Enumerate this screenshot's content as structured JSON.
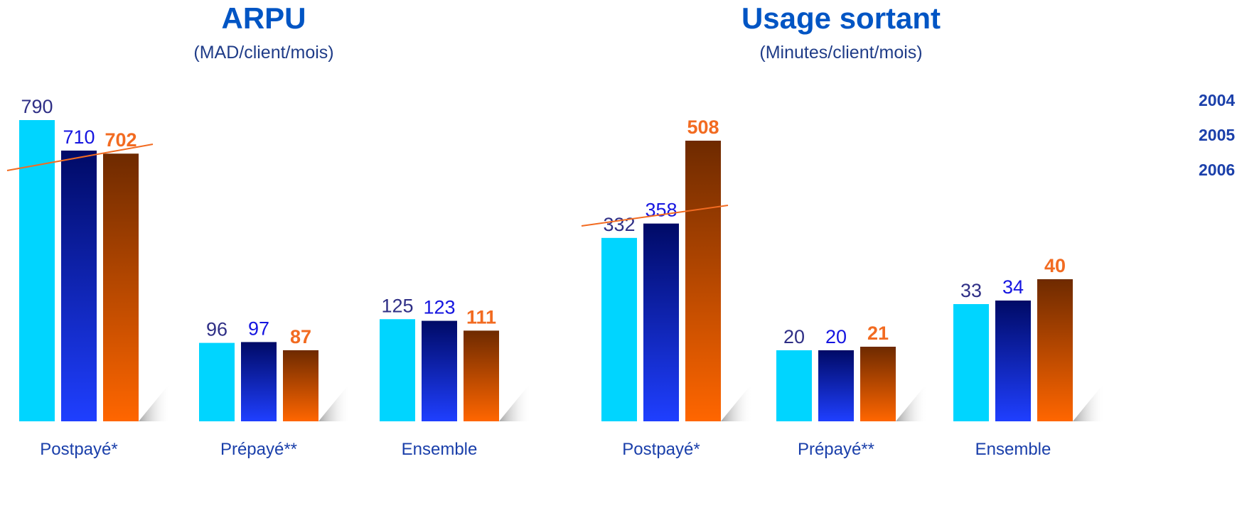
{
  "colors": {
    "title": "#0055c4",
    "subtitle": "#1f3c88",
    "axis_labels": "#1a3faa",
    "legend": "#1a3faa",
    "trend_line": "#f26b21",
    "series_gradients": [
      [
        "#00d5ff",
        "#00d5ff"
      ],
      [
        "#000a66",
        "#1f3fff"
      ],
      [
        "#6e2a00",
        "#ff6600"
      ]
    ],
    "label_colors": [
      "#2f2f86",
      "#1515e0",
      "#f26b21"
    ]
  },
  "legend": {
    "items": [
      "2004",
      "2005",
      "2006"
    ]
  },
  "chart_data": [
    {
      "type": "bar",
      "title": "ARPU",
      "subtitle": "(MAD/client/mois)",
      "categories": [
        "Postpayé*",
        "Prépayé**",
        "Ensemble"
      ],
      "series": [
        {
          "values": [
            790,
            96,
            125
          ]
        },
        {
          "values": [
            710,
            97,
            123
          ]
        },
        {
          "values": [
            702,
            87,
            111
          ]
        }
      ],
      "axis_break": true,
      "grid": false
    },
    {
      "type": "bar",
      "title": "Usage sortant",
      "subtitle": "(Minutes/client/mois)",
      "categories": [
        "Postpayé*",
        "Prépayé**",
        "Ensemble"
      ],
      "series": [
        {
          "values": [
            332,
            20,
            33
          ]
        },
        {
          "values": [
            358,
            20,
            34
          ]
        },
        {
          "values": [
            508,
            21,
            40
          ]
        }
      ],
      "axis_break": true,
      "grid": false
    }
  ]
}
